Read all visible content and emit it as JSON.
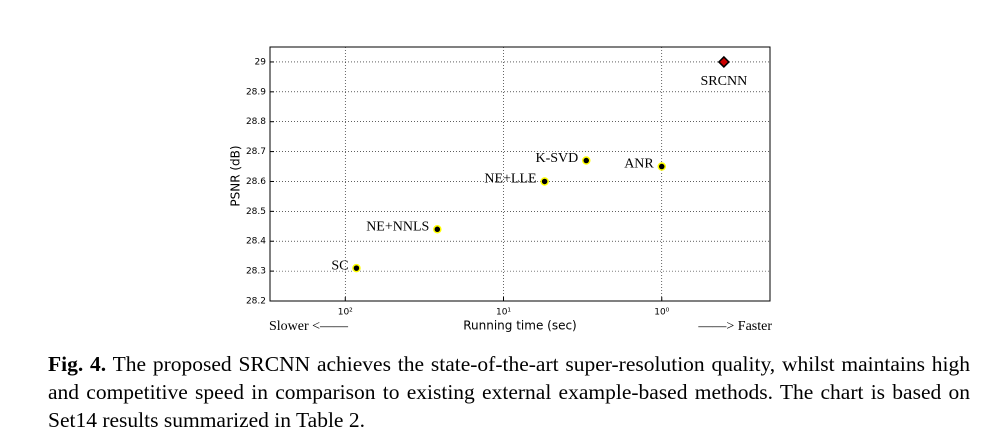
{
  "chart_data": {
    "type": "scatter",
    "xlabel": "Running time (sec)",
    "ylabel": "PSNR (dB)",
    "slower": "Slower <——",
    "faster": "——> Faster",
    "xscale": "log",
    "xreverse": true,
    "xlim": [
      299,
      0.207
    ],
    "ylim": [
      28.2,
      29.05
    ],
    "xticks": [
      {
        "value": 100,
        "label": "10²"
      },
      {
        "value": 10,
        "label": "10¹"
      },
      {
        "value": 1,
        "label": "10⁰"
      }
    ],
    "yticks": [
      28.2,
      28.3,
      28.4,
      28.5,
      28.6,
      28.7,
      28.8,
      28.9,
      29
    ],
    "grid": true,
    "points": [
      {
        "label": "SC",
        "x": 85,
        "y": 28.31,
        "marker": "circle",
        "color": "#000000",
        "edge_color": "#ffff00"
      },
      {
        "label": "NE+NNLS",
        "x": 26.2,
        "y": 28.44,
        "marker": "circle",
        "color": "#000000",
        "edge_color": "#ffff00"
      },
      {
        "label": "NE+LLE",
        "x": 5.5,
        "y": 28.6,
        "marker": "circle",
        "color": "#000000",
        "edge_color": "#ffff00"
      },
      {
        "label": "K-SVD",
        "x": 3.0,
        "y": 28.67,
        "marker": "circle",
        "color": "#000000",
        "edge_color": "#ffff00"
      },
      {
        "label": "ANR",
        "x": 1.0,
        "y": 28.65,
        "marker": "circle",
        "color": "#000000",
        "edge_color": "#ffff00"
      },
      {
        "label": "SRCNN",
        "x": 0.405,
        "y": 29,
        "marker": "diamond",
        "color": "#cc0000",
        "edge_color": "#000000"
      }
    ]
  },
  "caption": {
    "label": "Fig. 4.",
    "text": "The proposed SRCNN achieves the state-of-the-art super-resolution quality, whilst maintains high and competitive speed in comparison to existing external example-based methods. The chart is based on Set14 results summarized in Table 2."
  }
}
